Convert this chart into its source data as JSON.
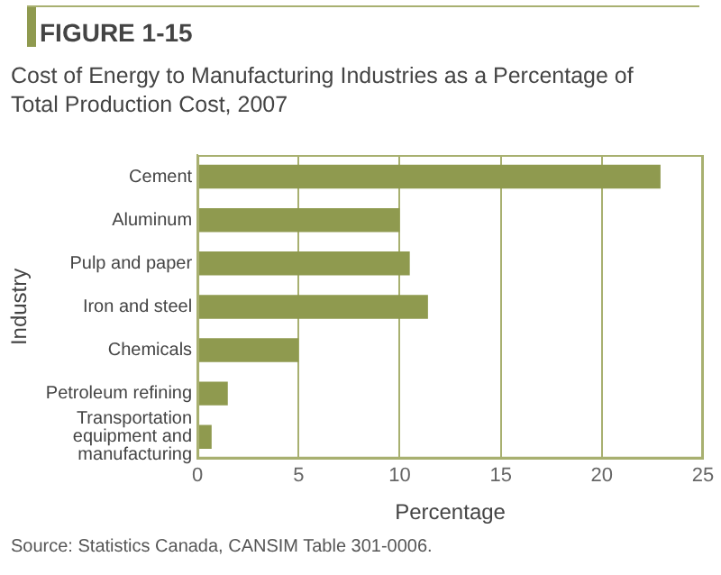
{
  "chart_data": {
    "type": "bar",
    "orientation": "horizontal",
    "title": "FIGURE 1-15",
    "subtitle": "Cost of Energy to Manufacturing Industries as a Percentage of Total Production Cost, 2007",
    "xlabel": "Percentage",
    "ylabel": "Industry",
    "categories": [
      "Cement",
      "Aluminum",
      "Pulp and paper",
      "Iron and steel",
      "Chemicals",
      "Petroleum refining",
      "Transportation equipment and manufacturing"
    ],
    "values": [
      22.9,
      10.0,
      10.5,
      11.4,
      5.0,
      1.5,
      0.7
    ],
    "color": "#8f9a4f",
    "xlim": [
      0,
      25
    ],
    "xticks": [
      0,
      5,
      10,
      15,
      20,
      25
    ],
    "grid": "x",
    "legend": false,
    "annotations": [
      "Source: Statistics Canada, CANSIM Table 301-0006."
    ]
  }
}
